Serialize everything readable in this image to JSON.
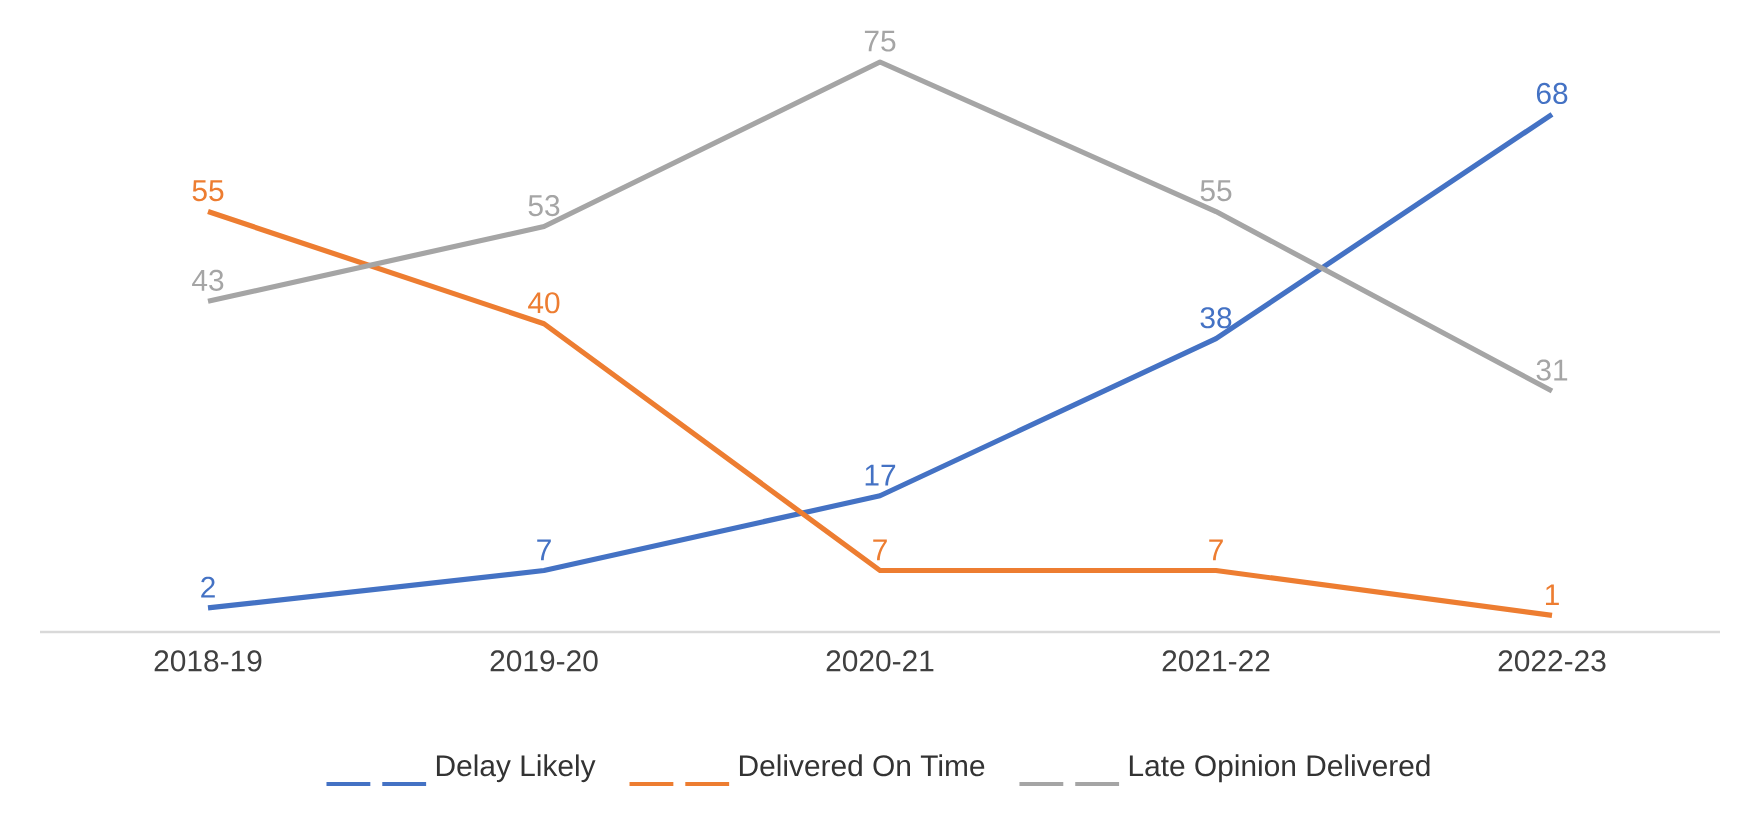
{
  "chart_data": {
    "type": "line",
    "categories": [
      "2018-19",
      "2019-20",
      "2020-21",
      "2021-22",
      "2022-23"
    ],
    "series": [
      {
        "name": "Delay Likely",
        "color": "#4472c4",
        "values": [
          2,
          7,
          17,
          38,
          68
        ]
      },
      {
        "name": "Delivered On Time",
        "color": "#ed7d31",
        "values": [
          55,
          40,
          7,
          7,
          1
        ]
      },
      {
        "name": "Late Opinion Delivered",
        "color": "#a5a5a5",
        "values": [
          43,
          53,
          75,
          55,
          31
        ]
      }
    ],
    "data_labels": true,
    "legend": "bottom",
    "line_style": "solid"
  }
}
